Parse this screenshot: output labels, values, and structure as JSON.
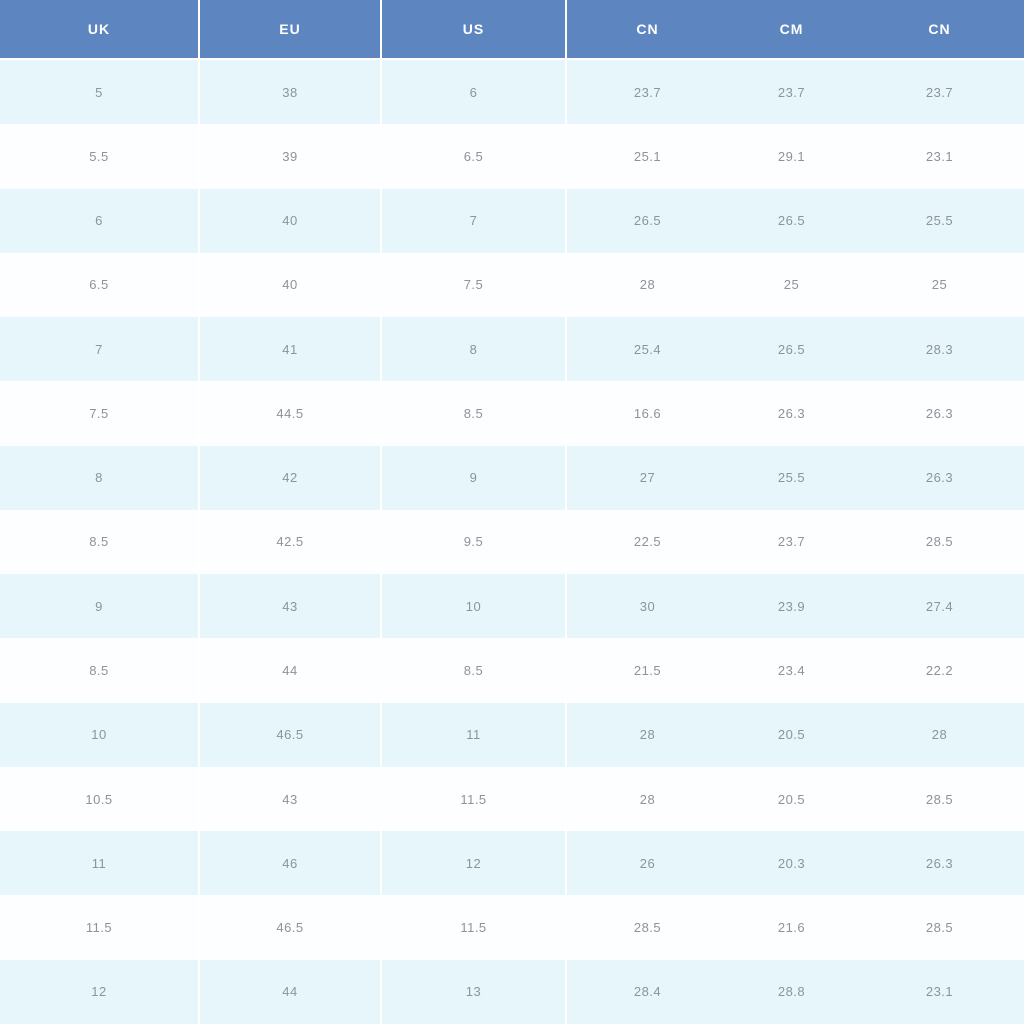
{
  "table": {
    "headers": [
      "UK",
      "EU",
      "US",
      "CN",
      "CM",
      "CN"
    ],
    "rows": [
      [
        "5",
        "38",
        "6",
        "23.7",
        "23.7",
        "23.7"
      ],
      [
        "5.5",
        "39",
        "6.5",
        "25.1",
        "29.1",
        "23.1"
      ],
      [
        "6",
        "40",
        "7",
        "26.5",
        "26.5",
        "25.5"
      ],
      [
        "6.5",
        "40",
        "7.5",
        "28",
        "25",
        "25"
      ],
      [
        "7",
        "41",
        "8",
        "25.4",
        "26.5",
        "28.3"
      ],
      [
        "7.5",
        "44.5",
        "8.5",
        "16.6",
        "26.3",
        "26.3"
      ],
      [
        "8",
        "42",
        "9",
        "27",
        "25.5",
        "26.3"
      ],
      [
        "8.5",
        "42.5",
        "9.5",
        "22.5",
        "23.7",
        "28.5"
      ],
      [
        "9",
        "43",
        "10",
        "30",
        "23.9",
        "27.4"
      ],
      [
        "8.5",
        "44",
        "8.5",
        "21.5",
        "23.4",
        "22.2"
      ],
      [
        "10",
        "46.5",
        "11",
        "28",
        "20.5",
        "28"
      ],
      [
        "10.5",
        "43",
        "11.5",
        "28",
        "20.5",
        "28.5"
      ],
      [
        "11",
        "46",
        "12",
        "26",
        "20.3",
        "26.3"
      ],
      [
        "11.5",
        "46.5",
        "11.5",
        "28.5",
        "21.6",
        "28.5"
      ],
      [
        "12",
        "44",
        "13",
        "28.4",
        "28.8",
        "23.1"
      ]
    ]
  },
  "colors": {
    "header_bg": "#5d86c1",
    "header_text": "#ffffff",
    "row_odd_bg": "#e7f6fa",
    "row_even_bg": "#fcfeff",
    "cell_text": "#8d939c",
    "separator": "#ffffff"
  }
}
